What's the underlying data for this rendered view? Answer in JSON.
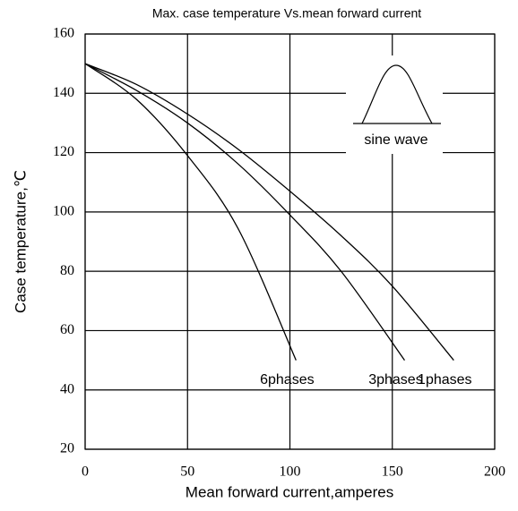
{
  "chart_data": {
    "type": "line",
    "title": "Max. case temperature  Vs.mean forward current",
    "xlabel": "Mean forward current,amperes",
    "ylabel": "Case temperature,℃",
    "annotations": [
      "sine  wave"
    ],
    "xlim": [
      0,
      200
    ],
    "xticks": [
      0,
      50,
      100,
      150,
      200
    ],
    "ylim": [
      20,
      160
    ],
    "yticks": [
      20,
      40,
      60,
      80,
      100,
      120,
      140,
      160
    ],
    "grid": true,
    "series": [
      {
        "name": "6phases",
        "color": "#000000",
        "x": [
          0,
          25,
          50,
          75,
          103
        ],
        "values": [
          150,
          138,
          119,
          94,
          50
        ]
      },
      {
        "name": "3phases",
        "color": "#000000",
        "x": [
          0,
          25,
          50,
          75,
          100,
          125,
          156
        ],
        "values": [
          150,
          141,
          130,
          116,
          99,
          80,
          50
        ]
      },
      {
        "name": "1phases",
        "color": "#000000",
        "x": [
          0,
          25,
          50,
          75,
          100,
          125,
          150,
          180
        ],
        "values": [
          150,
          143,
          133,
          121,
          107,
          92,
          75,
          50
        ]
      }
    ]
  }
}
